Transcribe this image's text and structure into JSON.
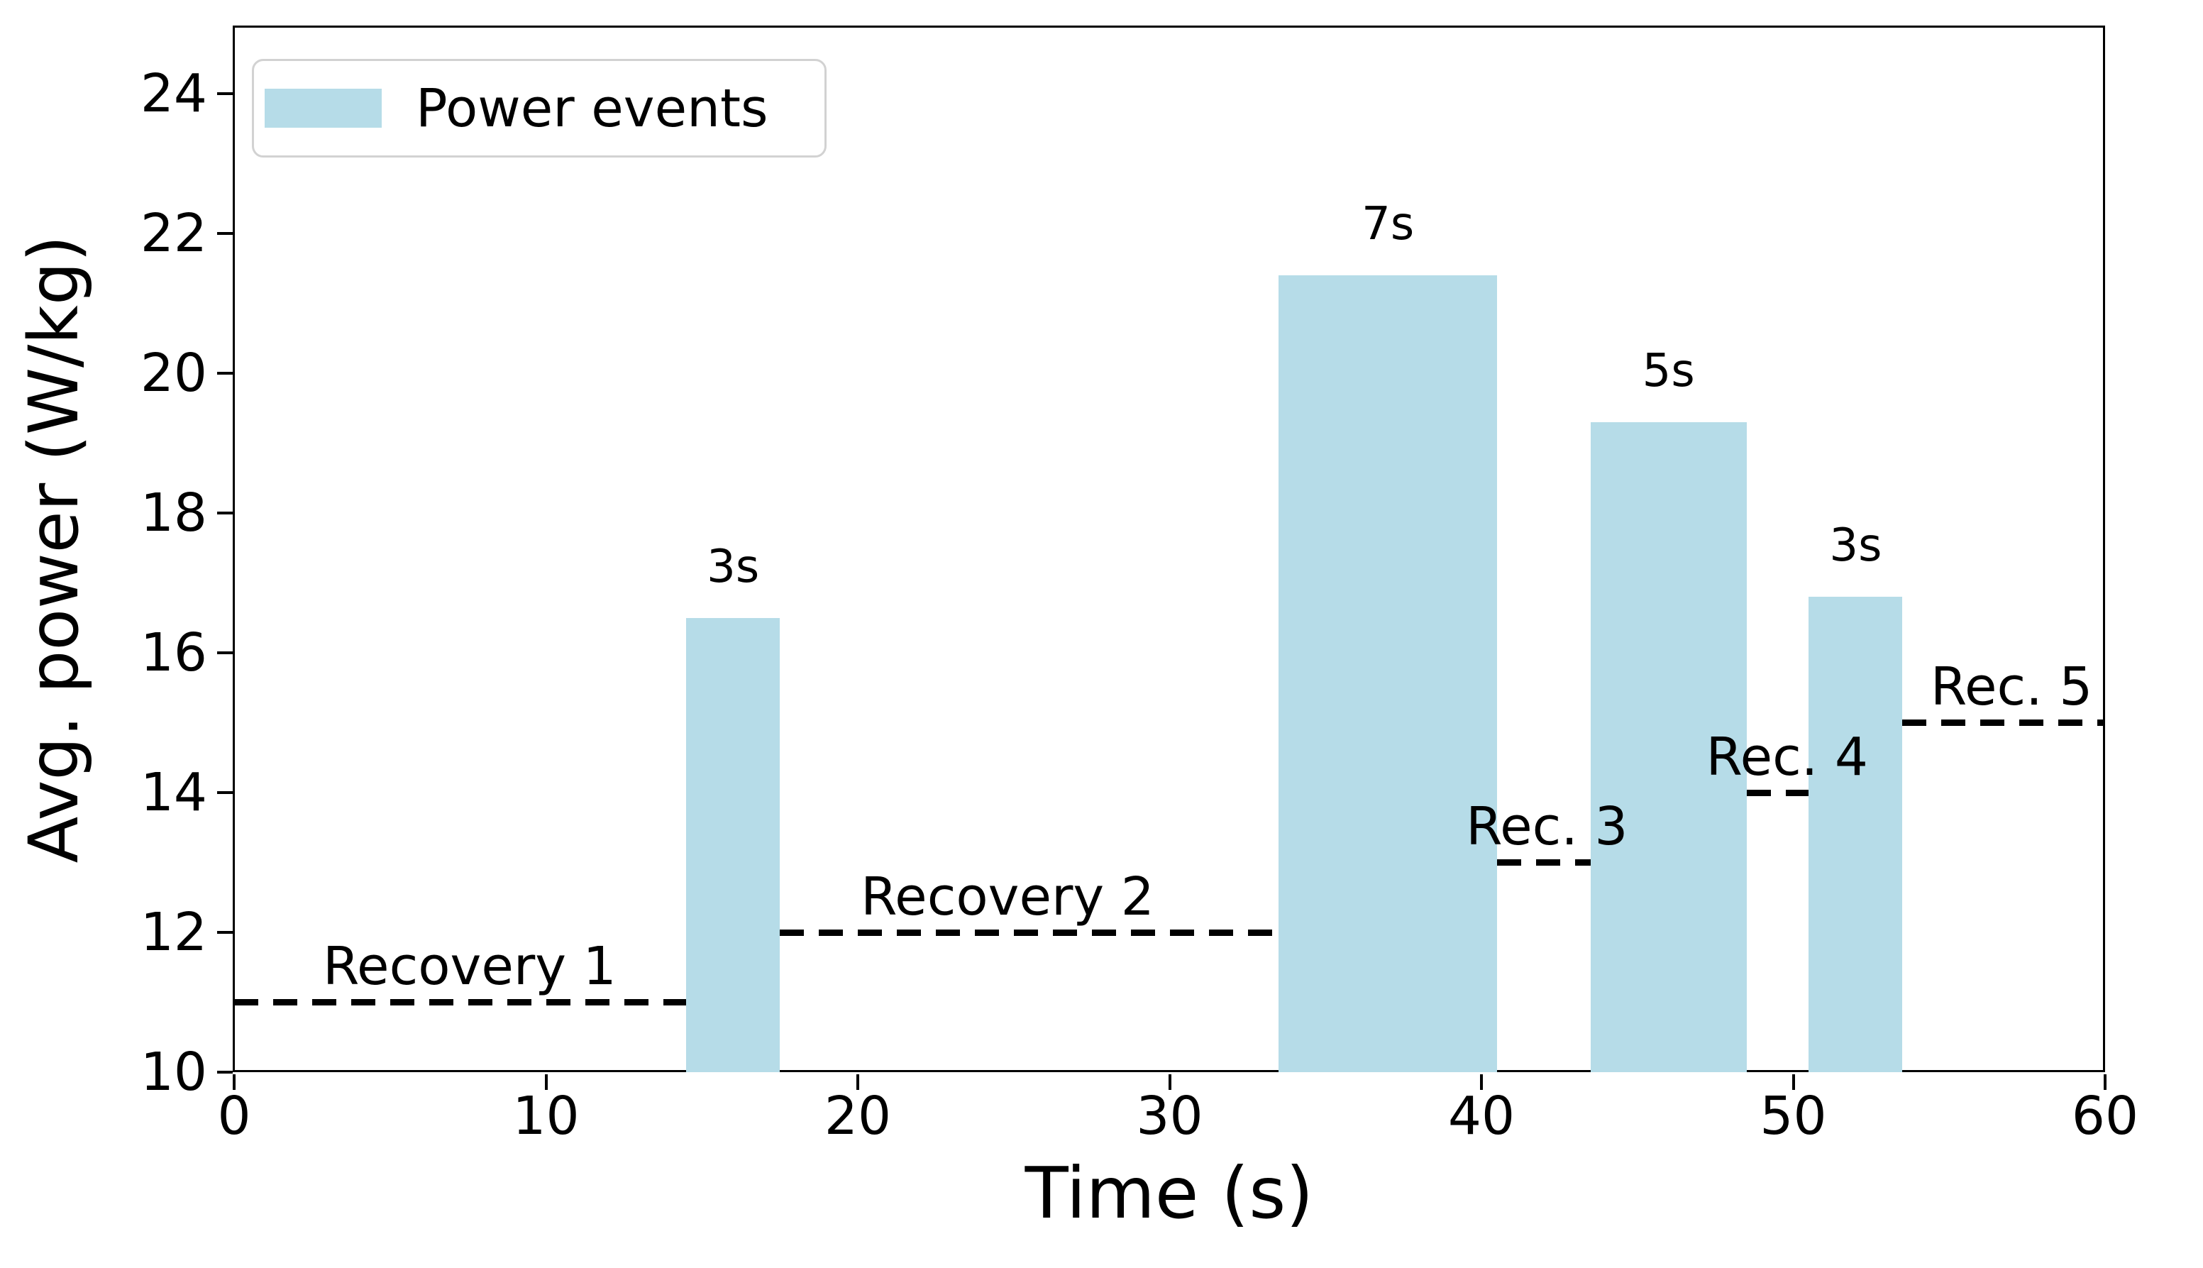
{
  "chart_data": {
    "type": "bar",
    "title": "",
    "xlabel": "Time (s)",
    "ylabel": "Avg. power (W/kg)",
    "xlim": [
      0,
      60
    ],
    "ylim": [
      10,
      24.95
    ],
    "x_ticks": [
      0,
      10,
      20,
      30,
      40,
      50,
      60
    ],
    "y_ticks": [
      10,
      12,
      14,
      16,
      18,
      20,
      22,
      24
    ],
    "grid": false,
    "baseline": 10,
    "legend": {
      "position": "upper left",
      "entries": [
        {
          "label": "Power events",
          "color": "#b6dce8"
        }
      ]
    },
    "bars": [
      {
        "label": "3s",
        "x_start": 14.5,
        "x_end": 17.5,
        "value": 16.5
      },
      {
        "label": "7s",
        "x_start": 33.5,
        "x_end": 40.5,
        "value": 21.4
      },
      {
        "label": "5s",
        "x_start": 43.5,
        "x_end": 48.5,
        "value": 19.3
      },
      {
        "label": "3s",
        "x_start": 50.5,
        "x_end": 53.5,
        "value": 16.8
      }
    ],
    "recovery_lines": [
      {
        "label": "Recovery 1",
        "y": 11,
        "x_start": 0,
        "x_end": 14.5,
        "label_x": 7.55
      },
      {
        "label": "Recovery 2",
        "y": 12,
        "x_start": 17.5,
        "x_end": 33.5,
        "label_x": 24.8
      },
      {
        "label": "Rec. 3",
        "y": 13,
        "x_start": 40.5,
        "x_end": 43.5,
        "label_x": 42.1
      },
      {
        "label": "Rec. 4",
        "y": 14,
        "x_start": 48.5,
        "x_end": 50.5,
        "label_x": 49.8
      },
      {
        "label": "Rec. 5",
        "y": 15,
        "x_start": 53.5,
        "x_end": 60,
        "label_x": 57.0
      }
    ],
    "colors": {
      "bar": "#b6dce8",
      "line": "#000000",
      "text": "#000000"
    }
  }
}
